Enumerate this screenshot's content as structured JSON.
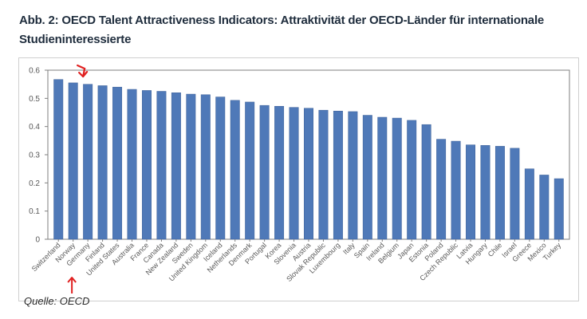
{
  "title": "Abb. 2: OECD Talent Attractiveness Indicators: Attraktivität der OECD-Länder für internationale Studieninteressierte",
  "source": "Quelle: OECD",
  "colors": {
    "bar": "#4f79b8",
    "bar_edge": "#3e6198",
    "highlight_arrow": "#e02020",
    "axis": "#7f7f7f"
  },
  "chart_data": {
    "type": "bar",
    "title": "",
    "xlabel": "",
    "ylabel": "",
    "ylim": [
      0,
      0.6
    ],
    "yticks": [
      "0",
      "0.1",
      "0.2",
      "0.3",
      "0.4",
      "0.5",
      "0.6"
    ],
    "grid": false,
    "categories": [
      "Switzerland",
      "Norway",
      "Germany",
      "Finland",
      "United States",
      "Australia",
      "France",
      "Canada",
      "New Zealand",
      "Sweden",
      "United Kingdom",
      "Iceland",
      "Netherlands",
      "Denmark",
      "Portugal",
      "Korea",
      "Slovenia",
      "Austria",
      "Slovak Republic",
      "Luxembourg",
      "Italy",
      "Spain",
      "Ireland",
      "Belgium",
      "Japan",
      "Estonia",
      "Poland",
      "Czech Republic",
      "Latvia",
      "Hungary",
      "Chile",
      "Israel",
      "Greece",
      "Mexico",
      "Turkey"
    ],
    "values": [
      0.567,
      0.555,
      0.55,
      0.545,
      0.54,
      0.532,
      0.528,
      0.525,
      0.52,
      0.515,
      0.513,
      0.505,
      0.493,
      0.487,
      0.475,
      0.472,
      0.468,
      0.465,
      0.458,
      0.455,
      0.453,
      0.44,
      0.433,
      0.43,
      0.422,
      0.407,
      0.355,
      0.348,
      0.335,
      0.333,
      0.33,
      0.323,
      0.25,
      0.228,
      0.215
    ],
    "highlighted_category": "Germany"
  }
}
